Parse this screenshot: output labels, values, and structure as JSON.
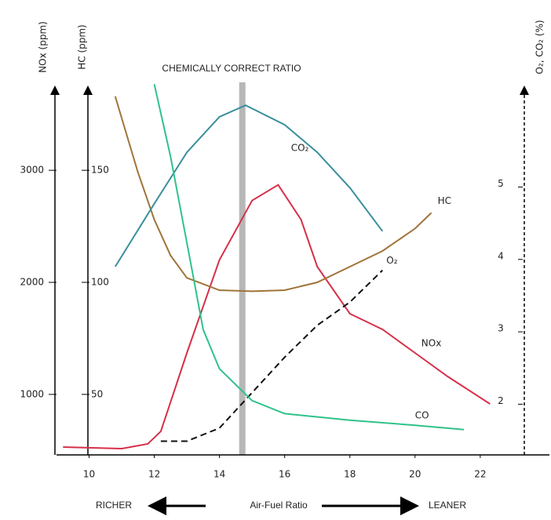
{
  "chart_data": {
    "type": "line",
    "title": "CHEMICALLY CORRECT RATIO",
    "stoich_x": 14.7,
    "xlabel": "Air-Fuel Ratio",
    "left_note": "RICHER",
    "right_note": "LEANER",
    "xlim": [
      9,
      23.4
    ],
    "xticks": [
      10,
      12,
      14,
      16,
      18,
      20,
      22
    ],
    "ylabel": "NOx (ppm)",
    "ylim": [
      460,
      3820
    ],
    "yticks": [
      1000,
      2000,
      3000
    ],
    "y2label": "HC (ppm)",
    "y2lim": [
      23,
      191
    ],
    "y2ticks": [
      50,
      100,
      150
    ],
    "y3label": "O₂, CO₂ (%)",
    "y3lim": [
      1.3,
      6.5
    ],
    "y3ticks": [
      2,
      3,
      4,
      5
    ],
    "series": [
      {
        "name": "NOx",
        "color": "#d6304a",
        "axis": "y",
        "x": [
          9.2,
          11,
          11.8,
          12.2,
          13,
          14,
          15,
          15.8,
          16.5,
          17,
          18,
          19,
          20,
          21,
          22.3
        ],
        "values": [
          530,
          516,
          558,
          670,
          1370,
          2200,
          2730,
          2870,
          2560,
          2140,
          1720,
          1580,
          1370,
          1160,
          915
        ]
      },
      {
        "name": "HC",
        "color": "#a0743a",
        "axis": "y2",
        "x": [
          10.8,
          11.5,
          12,
          12.5,
          13,
          14,
          15,
          16,
          17,
          18,
          19,
          20,
          20.5
        ],
        "values": [
          183,
          149,
          128,
          112,
          102,
          96.5,
          96,
          96.5,
          100,
          107,
          114,
          124,
          131
        ]
      },
      {
        "name": "CO₂",
        "color": "#3a8f9c",
        "axis": "y3",
        "x": [
          10.8,
          12,
          13,
          14,
          14.8,
          16,
          17,
          18,
          19
        ],
        "values": [
          3.9,
          4.77,
          5.48,
          5.97,
          6.13,
          5.86,
          5.48,
          4.99,
          4.39
        ]
      },
      {
        "name": "O₂",
        "color": "#111111",
        "axis": "y3",
        "dashed": true,
        "x": [
          12.2,
          13,
          14,
          15,
          16,
          17,
          18,
          19
        ],
        "values": [
          1.49,
          1.49,
          1.67,
          2.16,
          2.65,
          3.09,
          3.41,
          3.85
        ]
      },
      {
        "name": "CO",
        "color": "#2fc28a",
        "axis": "y3",
        "x": [
          12,
          12.5,
          13,
          13.5,
          14,
          15,
          16,
          18,
          20,
          21.5
        ],
        "values": [
          6.42,
          5.42,
          4.23,
          3.03,
          2.49,
          2.05,
          1.87,
          1.78,
          1.71,
          1.65
        ]
      }
    ]
  }
}
